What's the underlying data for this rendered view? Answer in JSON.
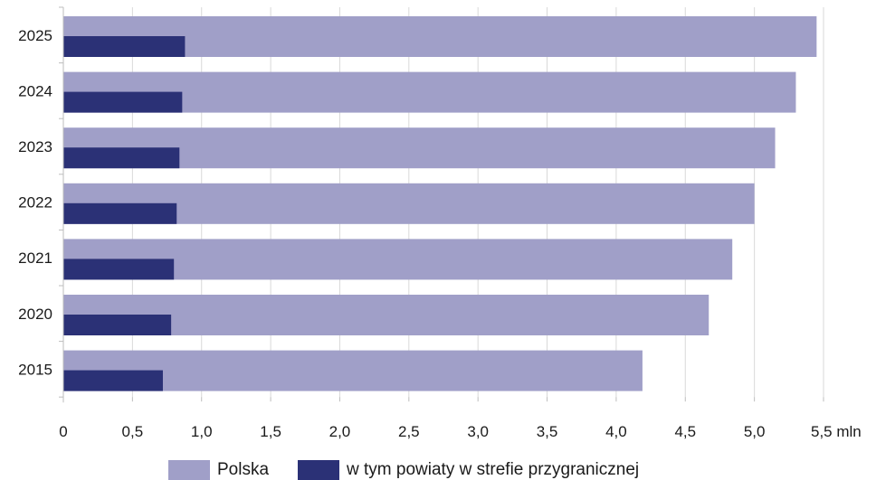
{
  "chart_data": {
    "type": "bar",
    "orientation": "horizontal",
    "categories": [
      "2025",
      "2024",
      "2023",
      "2022",
      "2021",
      "2020",
      "2015"
    ],
    "series": [
      {
        "name": "Polska",
        "color": "#a09fc8",
        "values": [
          5.45,
          5.3,
          5.15,
          5.0,
          4.84,
          4.67,
          4.19
        ]
      },
      {
        "name": "w tym powiaty w strefie przygranicznej",
        "color": "#2b3176",
        "values": [
          0.88,
          0.86,
          0.84,
          0.82,
          0.8,
          0.78,
          0.72
        ]
      }
    ],
    "x_ticks": [
      "0",
      "0,5",
      "1,0",
      "1,5",
      "2,0",
      "2,5",
      "3,0",
      "3,5",
      "4,0",
      "4,5",
      "5,0",
      "5,5 mln"
    ],
    "xlim": [
      0,
      5.5
    ],
    "grid": true,
    "legend_position": "bottom"
  }
}
